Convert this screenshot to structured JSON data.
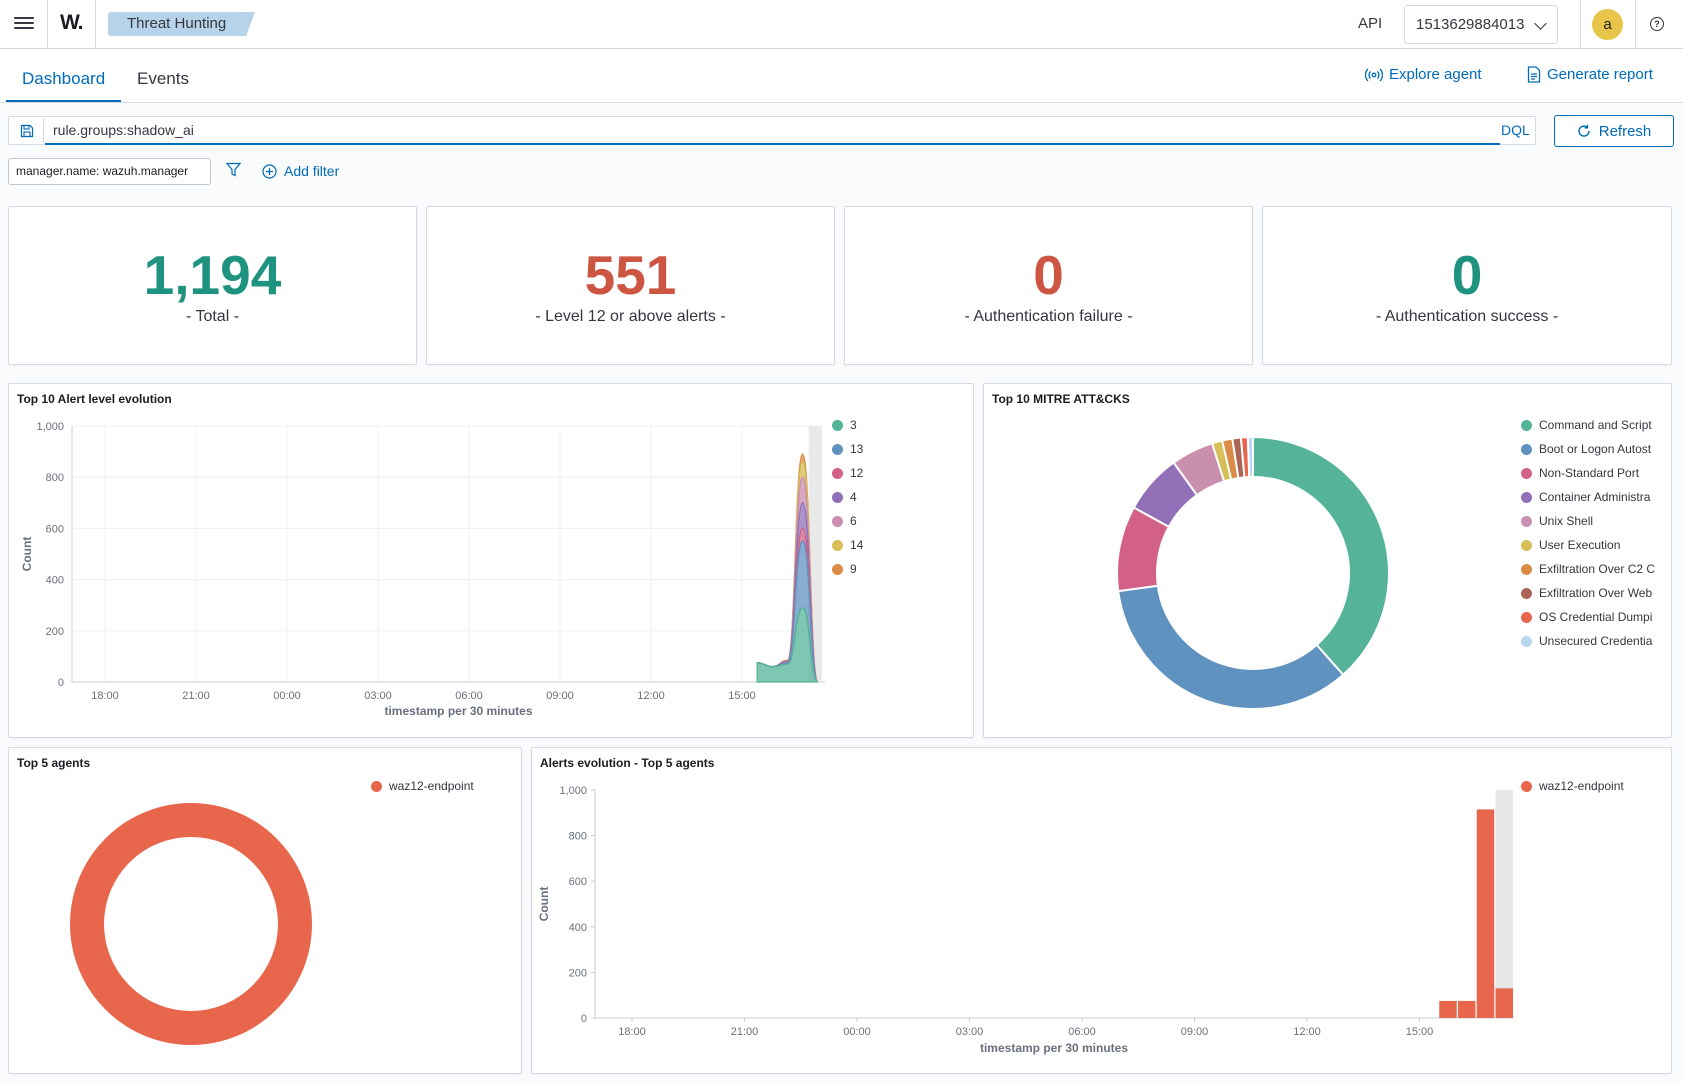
{
  "header": {
    "logo": "W.",
    "breadcrumb": "Threat Hunting",
    "api_label": "API",
    "api_value": "1513629884013",
    "avatar_initial": "a",
    "help_glyph": "?"
  },
  "tabs": [
    {
      "label": "Dashboard",
      "active": true
    },
    {
      "label": "Events",
      "active": false
    }
  ],
  "actions": {
    "explore_agent": "Explore agent",
    "generate_report": "Generate report"
  },
  "search": {
    "query": "rule.groups:shadow_ai",
    "language": "DQL",
    "refresh_label": "Refresh"
  },
  "filters": {
    "pill": "manager.name: wazuh.manager",
    "add_filter": "Add filter"
  },
  "metrics": [
    {
      "value": "1,194",
      "label": "- Total -",
      "color": "#209280"
    },
    {
      "value": "551",
      "label": "- Level 12 or above alerts -",
      "color": "#cc5642"
    },
    {
      "value": "0",
      "label": "- Authentication failure -",
      "color": "#cc5642"
    },
    {
      "value": "0",
      "label": "- Authentication success -",
      "color": "#209280"
    }
  ],
  "panels": {
    "alert_level_title": "Top 10 Alert level evolution",
    "mitre_title": "Top 10 MITRE ATT&CKS",
    "top_agents_title": "Top 5 agents",
    "alerts_evolution_title": "Alerts evolution - Top 5 agents"
  },
  "chart_data": [
    {
      "type": "area",
      "title": "Top 10 Alert level evolution",
      "xlabel": "timestamp per 30 minutes",
      "ylabel": "Count",
      "ylim": [
        0,
        1000
      ],
      "yticks": [
        "0",
        "200",
        "400",
        "600",
        "800",
        "1,000"
      ],
      "xticks": [
        "18:00",
        "21:00",
        "00:00",
        "03:00",
        "06:00",
        "09:00",
        "12:00",
        "15:00"
      ],
      "x": [
        "15:30",
        "16:00",
        "16:30",
        "17:00",
        "17:30"
      ],
      "stacked": true,
      "legend_position": "right",
      "series": [
        {
          "name": "3",
          "color": "#54b399",
          "values": [
            75,
            60,
            70,
            290,
            0
          ]
        },
        {
          "name": "13",
          "color": "#6092c0",
          "values": [
            0,
            0,
            5,
            260,
            0
          ]
        },
        {
          "name": "12",
          "color": "#d36086",
          "values": [
            0,
            0,
            3,
            50,
            0
          ]
        },
        {
          "name": "4",
          "color": "#9170b8",
          "values": [
            0,
            0,
            3,
            100,
            0
          ]
        },
        {
          "name": "6",
          "color": "#ca8eae",
          "values": [
            0,
            0,
            2,
            100,
            0
          ]
        },
        {
          "name": "14",
          "color": "#d6bf57",
          "values": [
            0,
            0,
            1,
            60,
            0
          ]
        },
        {
          "name": "9",
          "color": "#da8b45",
          "values": [
            0,
            0,
            1,
            30,
            0
          ]
        }
      ]
    },
    {
      "type": "pie",
      "title": "Top 10 MITRE ATT&CKS",
      "donut": true,
      "legend_position": "right",
      "slices": [
        {
          "label": "Command and Script",
          "value": 38,
          "color": "#54b399"
        },
        {
          "label": "Boot or Logon Autost",
          "value": 34,
          "color": "#6092c0"
        },
        {
          "label": "Non-Standard Port",
          "value": 10,
          "color": "#d36086"
        },
        {
          "label": "Container Administra",
          "value": 7,
          "color": "#9170b8"
        },
        {
          "label": "Unix Shell",
          "value": 5,
          "color": "#ca8eae"
        },
        {
          "label": "User Execution",
          "value": 1.2,
          "color": "#d6bf57"
        },
        {
          "label": "Exfiltration Over C2 C",
          "value": 1.2,
          "color": "#da8b45"
        },
        {
          "label": "Exfiltration Over Web",
          "value": 1,
          "color": "#aa6556"
        },
        {
          "label": "OS Credential Dumpi",
          "value": 0.8,
          "color": "#e7664c"
        },
        {
          "label": "Unsecured Credentia",
          "value": 0.6,
          "color": "#b9d6f0"
        }
      ]
    },
    {
      "type": "pie",
      "title": "Top 5 agents",
      "donut": true,
      "legend_position": "top-right",
      "slices": [
        {
          "label": "waz12-endpoint",
          "value": 1194,
          "color": "#e7664c"
        }
      ]
    },
    {
      "type": "bar",
      "title": "Alerts evolution - Top 5 agents",
      "xlabel": "timestamp per 30 minutes",
      "ylabel": "Count",
      "ylim": [
        0,
        1000
      ],
      "yticks": [
        "0",
        "200",
        "400",
        "600",
        "800",
        "1,000"
      ],
      "xticks": [
        "18:00",
        "21:00",
        "00:00",
        "03:00",
        "06:00",
        "09:00",
        "12:00",
        "15:00"
      ],
      "x": [
        "15:30",
        "16:00",
        "16:30",
        "17:00"
      ],
      "legend_position": "top-right",
      "series": [
        {
          "name": "waz12-endpoint",
          "color": "#e7664c",
          "values": [
            75,
            75,
            915,
            130
          ]
        }
      ]
    }
  ]
}
